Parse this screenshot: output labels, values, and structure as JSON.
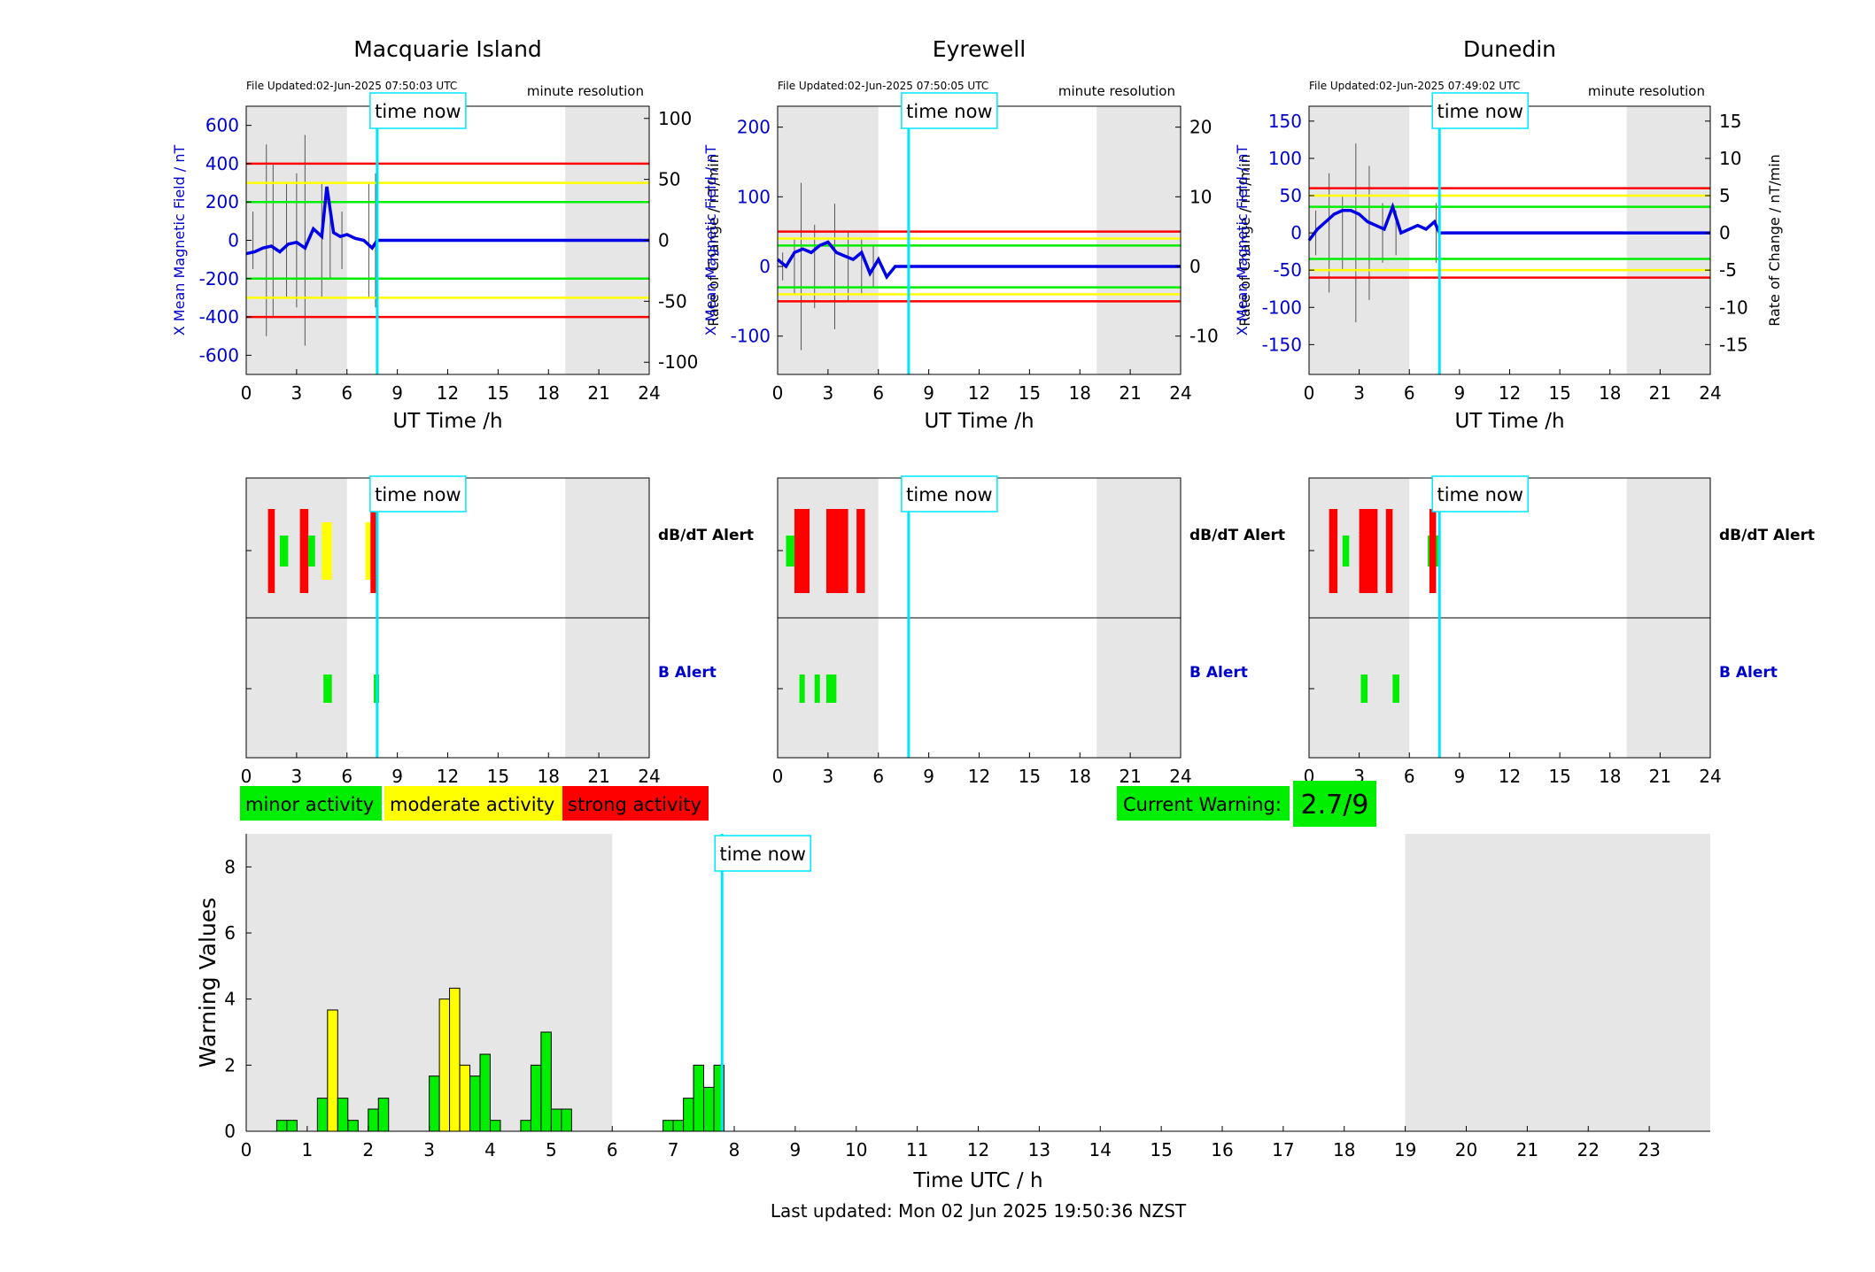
{
  "colors": {
    "night_shade": "#e6e6e6",
    "time_now": "#00e5ff",
    "mean_field": "#0000e6",
    "raw_trace": "#555555",
    "red": "#ff0000",
    "yellow": "#ffff00",
    "green": "#00ee00",
    "axis_blue": "#0000cc"
  },
  "labels": {
    "time_now": "time now",
    "minute_resolution": "minute resolution",
    "ut_time": "UT Time /h",
    "y_left": "X Mean Magnetic Field / nT",
    "y_right": "Rate of Change / nT/min",
    "dbdt_alert": "dB/dT Alert",
    "b_alert": "B Alert",
    "warning_values": "Warning Values",
    "time_utc": "Time UTC / h",
    "last_updated": "Last updated: Mon 02 Jun 2025 19:50:36 NZST"
  },
  "legend": {
    "minor": "minor activity",
    "moderate": "moderate activity",
    "strong": "strong activity"
  },
  "current_warning": {
    "label": "Current Warning:",
    "value": "2.7/9"
  },
  "chart_data": [
    {
      "type": "line",
      "title": "Macquarie Island",
      "file_updated": "File Updated:02-Jun-2025 07:50:03 UTC",
      "xlim": [
        0,
        24
      ],
      "xticks": [
        0,
        3,
        6,
        9,
        12,
        15,
        18,
        21,
        24
      ],
      "ylim": [
        -700,
        700
      ],
      "yticks": [
        -600,
        -400,
        -200,
        0,
        200,
        400,
        600
      ],
      "y2lim": [
        -110,
        110
      ],
      "y2ticks": [
        -100,
        -50,
        0,
        50,
        100
      ],
      "night": [
        [
          0,
          6
        ],
        [
          19,
          24
        ]
      ],
      "time_now": 7.8,
      "thresholds": {
        "red": 400,
        "yellow": 300,
        "green": 200
      },
      "mean_field": [
        [
          0,
          -70
        ],
        [
          0.5,
          -60
        ],
        [
          1,
          -40
        ],
        [
          1.5,
          -30
        ],
        [
          2,
          -60
        ],
        [
          2.5,
          -20
        ],
        [
          3,
          -10
        ],
        [
          3.5,
          -40
        ],
        [
          4,
          60
        ],
        [
          4.5,
          20
        ],
        [
          4.8,
          280
        ],
        [
          5.2,
          40
        ],
        [
          5.6,
          20
        ],
        [
          6,
          30
        ],
        [
          6.5,
          10
        ],
        [
          7,
          0
        ],
        [
          7.5,
          -40
        ],
        [
          7.8,
          0
        ],
        [
          24,
          0
        ]
      ],
      "raw_activity": [
        [
          0.4,
          30
        ],
        [
          1.2,
          100
        ],
        [
          1.6,
          80
        ],
        [
          2.4,
          60
        ],
        [
          3.0,
          70
        ],
        [
          3.5,
          110
        ],
        [
          4.5,
          60
        ],
        [
          5.0,
          40
        ],
        [
          5.7,
          30
        ],
        [
          7.3,
          60
        ],
        [
          7.7,
          70
        ]
      ]
    },
    {
      "type": "line",
      "title": "Eyrewell",
      "file_updated": "File Updated:02-Jun-2025 07:50:05 UTC",
      "xlim": [
        0,
        24
      ],
      "xticks": [
        0,
        3,
        6,
        9,
        12,
        15,
        18,
        21,
        24
      ],
      "ylim": [
        -155,
        230
      ],
      "yticks": [
        -100,
        0,
        100,
        200
      ],
      "y2lim": [
        -15.5,
        23
      ],
      "y2ticks": [
        -10,
        0,
        10,
        20
      ],
      "night": [
        [
          0,
          6
        ],
        [
          19,
          24
        ]
      ],
      "time_now": 7.8,
      "thresholds": {
        "red": 50,
        "yellow": 40,
        "green": 30
      },
      "mean_field": [
        [
          0,
          10
        ],
        [
          0.5,
          0
        ],
        [
          1,
          20
        ],
        [
          1.5,
          25
        ],
        [
          2,
          20
        ],
        [
          2.5,
          30
        ],
        [
          3,
          35
        ],
        [
          3.5,
          20
        ],
        [
          4,
          15
        ],
        [
          4.5,
          10
        ],
        [
          5,
          20
        ],
        [
          5.5,
          -10
        ],
        [
          6,
          10
        ],
        [
          6.5,
          -15
        ],
        [
          7,
          0
        ],
        [
          24,
          0
        ]
      ],
      "raw_activity": [
        [
          0.3,
          20
        ],
        [
          1.0,
          40
        ],
        [
          1.4,
          120
        ],
        [
          2.2,
          60
        ],
        [
          3.4,
          90
        ],
        [
          4.2,
          50
        ],
        [
          5.0,
          40
        ],
        [
          5.7,
          30
        ]
      ]
    },
    {
      "type": "line",
      "title": "Dunedin",
      "file_updated": "File Updated:02-Jun-2025 07:49:02 UTC",
      "xlim": [
        0,
        24
      ],
      "xticks": [
        0,
        3,
        6,
        9,
        12,
        15,
        18,
        21,
        24
      ],
      "ylim": [
        -190,
        170
      ],
      "yticks": [
        -150,
        -100,
        -50,
        0,
        50,
        100,
        150
      ],
      "y2lim": [
        -19,
        17
      ],
      "y2ticks": [
        -15,
        -10,
        -5,
        0,
        5,
        10,
        15
      ],
      "night": [
        [
          0,
          6
        ],
        [
          19,
          24
        ]
      ],
      "time_now": 7.8,
      "thresholds": {
        "red": 60,
        "yellow": 50,
        "green": 35
      },
      "mean_field": [
        [
          0,
          -10
        ],
        [
          0.5,
          5
        ],
        [
          1,
          15
        ],
        [
          1.5,
          25
        ],
        [
          2,
          30
        ],
        [
          2.5,
          30
        ],
        [
          3,
          25
        ],
        [
          3.5,
          15
        ],
        [
          4,
          10
        ],
        [
          4.5,
          5
        ],
        [
          5,
          35
        ],
        [
          5.5,
          0
        ],
        [
          6,
          5
        ],
        [
          6.5,
          10
        ],
        [
          7,
          5
        ],
        [
          7.5,
          15
        ],
        [
          7.8,
          0
        ],
        [
          24,
          0
        ]
      ],
      "raw_activity": [
        [
          0.4,
          30
        ],
        [
          1.2,
          80
        ],
        [
          2.0,
          50
        ],
        [
          2.8,
          120
        ],
        [
          3.6,
          90
        ],
        [
          4.4,
          40
        ],
        [
          5.2,
          30
        ],
        [
          7.6,
          40
        ]
      ]
    },
    {
      "type": "alert_timeline",
      "station": "Macquarie Island",
      "xlim": [
        0,
        24
      ],
      "xticks": [
        0,
        3,
        6,
        9,
        12,
        15,
        18,
        21,
        24
      ],
      "night": [
        [
          0,
          6
        ],
        [
          19,
          24
        ]
      ],
      "time_now": 7.8,
      "dbdt": [
        {
          "t0": 1.3,
          "t1": 1.7,
          "level": "strong"
        },
        {
          "t0": 2.0,
          "t1": 2.5,
          "level": "minor"
        },
        {
          "t0": 3.2,
          "t1": 3.7,
          "level": "strong"
        },
        {
          "t0": 3.7,
          "t1": 4.1,
          "level": "minor"
        },
        {
          "t0": 4.5,
          "t1": 5.1,
          "level": "moderate"
        },
        {
          "t0": 7.1,
          "t1": 7.8,
          "level": "moderate"
        },
        {
          "t0": 7.4,
          "t1": 7.8,
          "level": "strong"
        }
      ],
      "b": [
        {
          "t0": 4.6,
          "t1": 5.1,
          "level": "minor"
        },
        {
          "t0": 7.6,
          "t1": 7.8,
          "level": "minor"
        }
      ]
    },
    {
      "type": "alert_timeline",
      "station": "Eyrewell",
      "xlim": [
        0,
        24
      ],
      "xticks": [
        0,
        3,
        6,
        9,
        12,
        15,
        18,
        21,
        24
      ],
      "night": [
        [
          0,
          6
        ],
        [
          19,
          24
        ]
      ],
      "time_now": 7.8,
      "dbdt": [
        {
          "t0": 0.5,
          "t1": 1.0,
          "level": "minor"
        },
        {
          "t0": 1.0,
          "t1": 1.9,
          "level": "strong"
        },
        {
          "t0": 2.9,
          "t1": 4.2,
          "level": "strong"
        },
        {
          "t0": 4.7,
          "t1": 5.2,
          "level": "strong"
        }
      ],
      "b": [
        {
          "t0": 1.3,
          "t1": 1.6,
          "level": "minor"
        },
        {
          "t0": 2.2,
          "t1": 2.5,
          "level": "minor"
        },
        {
          "t0": 2.9,
          "t1": 3.5,
          "level": "minor"
        }
      ]
    },
    {
      "type": "alert_timeline",
      "station": "Dunedin",
      "xlim": [
        0,
        24
      ],
      "xticks": [
        0,
        3,
        6,
        9,
        12,
        15,
        18,
        21,
        24
      ],
      "night": [
        [
          0,
          6
        ],
        [
          19,
          24
        ]
      ],
      "time_now": 7.8,
      "dbdt": [
        {
          "t0": 1.2,
          "t1": 1.7,
          "level": "strong"
        },
        {
          "t0": 2.0,
          "t1": 2.4,
          "level": "minor"
        },
        {
          "t0": 3.0,
          "t1": 4.1,
          "level": "strong"
        },
        {
          "t0": 4.6,
          "t1": 5.0,
          "level": "strong"
        },
        {
          "t0": 7.1,
          "t1": 7.8,
          "level": "minor"
        },
        {
          "t0": 7.2,
          "t1": 7.6,
          "level": "strong"
        }
      ],
      "b": [
        {
          "t0": 3.1,
          "t1": 3.5,
          "level": "minor"
        },
        {
          "t0": 5.0,
          "t1": 5.4,
          "level": "minor"
        }
      ]
    },
    {
      "type": "bar",
      "xlabel": "Time UTC / h",
      "ylabel": "Warning Values",
      "xlim": [
        0,
        24
      ],
      "xticks": [
        0,
        1,
        2,
        3,
        4,
        5,
        6,
        7,
        8,
        9,
        10,
        11,
        12,
        13,
        14,
        15,
        16,
        17,
        18,
        19,
        20,
        21,
        22,
        23
      ],
      "ylim": [
        0,
        9
      ],
      "yticks": [
        0,
        2,
        4,
        6,
        8
      ],
      "night": [
        [
          0,
          6
        ],
        [
          19,
          24
        ]
      ],
      "time_now": 7.8,
      "bar_width_h": 0.1667,
      "bars": [
        {
          "t": 0.5,
          "v": 0.33,
          "level": "minor"
        },
        {
          "t": 0.667,
          "v": 0.33,
          "level": "minor"
        },
        {
          "t": 1.167,
          "v": 1.0,
          "level": "minor"
        },
        {
          "t": 1.333,
          "v": 3.67,
          "level": "moderate"
        },
        {
          "t": 1.5,
          "v": 1.0,
          "level": "minor"
        },
        {
          "t": 1.667,
          "v": 0.33,
          "level": "minor"
        },
        {
          "t": 2.0,
          "v": 0.67,
          "level": "minor"
        },
        {
          "t": 2.167,
          "v": 1.0,
          "level": "minor"
        },
        {
          "t": 3.0,
          "v": 1.67,
          "level": "minor"
        },
        {
          "t": 3.167,
          "v": 4.0,
          "level": "moderate"
        },
        {
          "t": 3.333,
          "v": 4.33,
          "level": "moderate"
        },
        {
          "t": 3.5,
          "v": 2.0,
          "level": "moderate"
        },
        {
          "t": 3.667,
          "v": 1.67,
          "level": "minor"
        },
        {
          "t": 3.833,
          "v": 2.33,
          "level": "minor"
        },
        {
          "t": 4.0,
          "v": 0.33,
          "level": "minor"
        },
        {
          "t": 4.5,
          "v": 0.33,
          "level": "minor"
        },
        {
          "t": 4.667,
          "v": 2.0,
          "level": "minor"
        },
        {
          "t": 4.833,
          "v": 3.0,
          "level": "minor"
        },
        {
          "t": 5.0,
          "v": 0.67,
          "level": "minor"
        },
        {
          "t": 5.167,
          "v": 0.67,
          "level": "minor"
        },
        {
          "t": 6.833,
          "v": 0.33,
          "level": "minor"
        },
        {
          "t": 7.0,
          "v": 0.33,
          "level": "minor"
        },
        {
          "t": 7.167,
          "v": 1.0,
          "level": "minor"
        },
        {
          "t": 7.333,
          "v": 2.0,
          "level": "minor"
        },
        {
          "t": 7.5,
          "v": 1.33,
          "level": "minor"
        },
        {
          "t": 7.667,
          "v": 2.0,
          "level": "minor"
        }
      ]
    }
  ]
}
